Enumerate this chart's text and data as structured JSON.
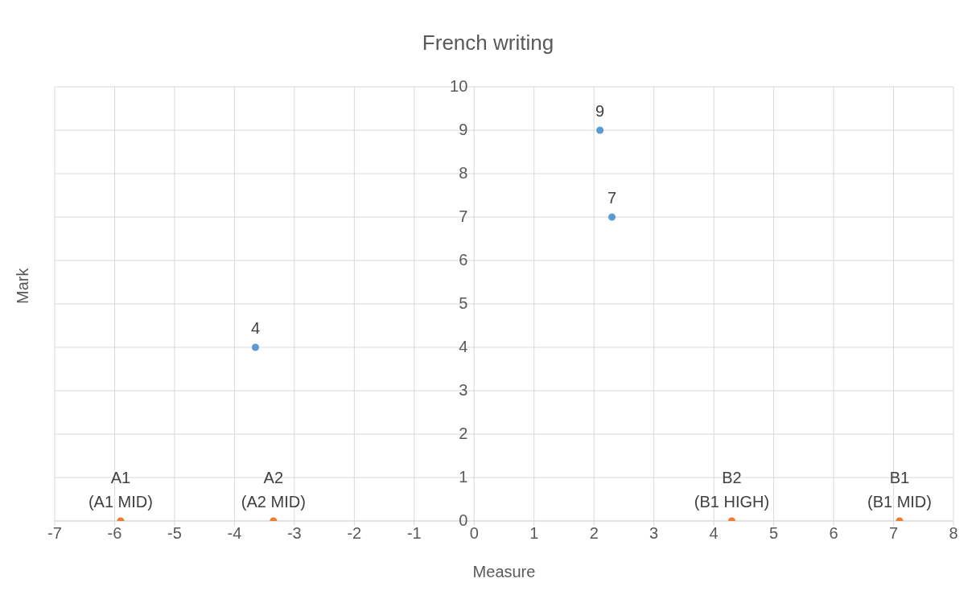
{
  "chart_data": {
    "type": "scatter",
    "title": "French writing",
    "xlabel": "Measure",
    "ylabel": "Mark",
    "xlim": [
      -7,
      8
    ],
    "xticks": [
      -7,
      -6,
      -5,
      -4,
      -3,
      -2,
      -1,
      0,
      1,
      2,
      3,
      4,
      5,
      6,
      7,
      8
    ],
    "ylim": [
      0,
      10
    ],
    "yticks": [
      0,
      1,
      2,
      3,
      4,
      5,
      6,
      7,
      8,
      9,
      10
    ],
    "grid": true,
    "legend": false,
    "marker": "circle",
    "series": [
      {
        "color": "#5b9bd5",
        "x": [
          -3.65,
          2.1,
          2.3
        ],
        "values": [
          4,
          9,
          7
        ],
        "value_labels": [
          "4",
          "9",
          "7"
        ]
      },
      {
        "color": "#ed7d31",
        "x": [
          -5.9,
          -3.35,
          4.3,
          7.1
        ],
        "values": [
          0,
          0,
          0,
          0
        ],
        "value_labels": [
          "A1\n(A1 MID)",
          "A2\n(A2 MID)",
          "B2\n(B1 HIGH)",
          "B1\n(B1 MID)"
        ]
      }
    ]
  }
}
